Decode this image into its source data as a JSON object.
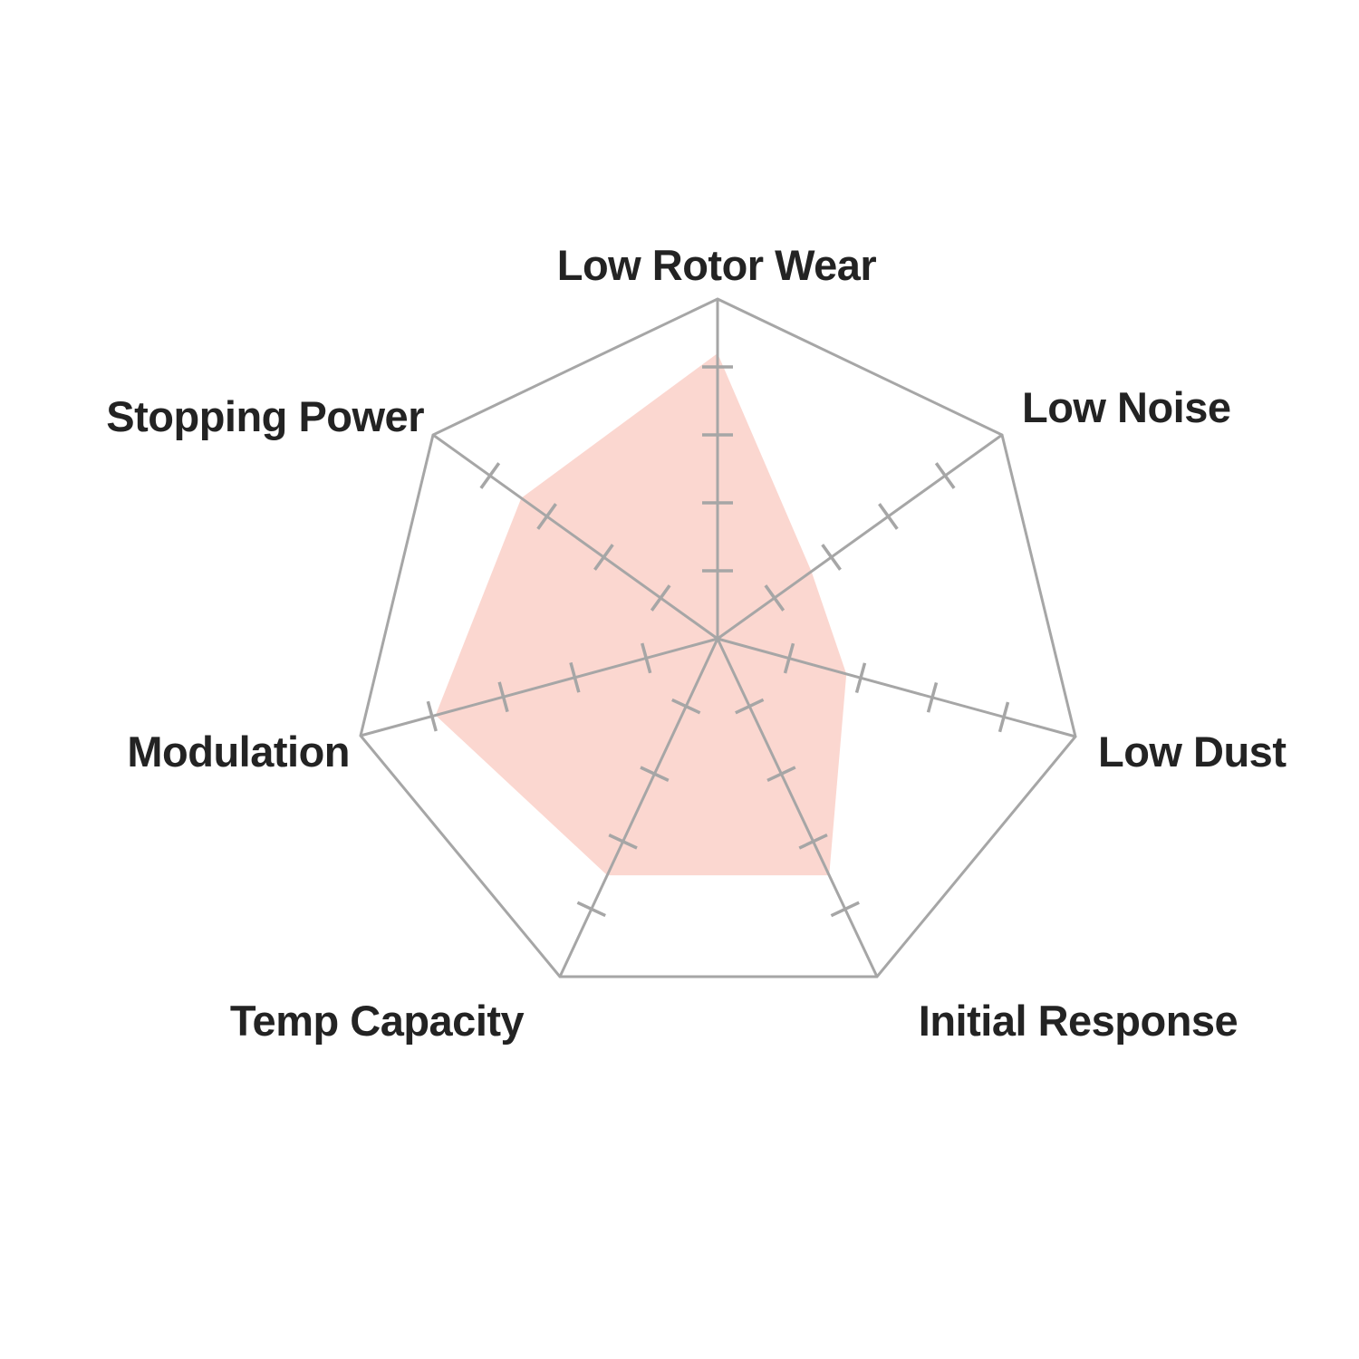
{
  "chart_data": {
    "type": "radar",
    "categories": [
      "Low Rotor Wear",
      "Low Noise",
      "Low Dust",
      "Initial Response",
      "Temp Capacity",
      "Modulation",
      "Stopping Power"
    ],
    "series": [
      {
        "values": [
          4.2,
          1.65,
          1.8,
          3.5,
          3.5,
          3.95,
          3.45
        ]
      }
    ],
    "scale_min": 0,
    "scale_max": 5,
    "ticks_per_axis": 4,
    "tick_step": 1,
    "grid": "single outer heptagon outline with radial spokes and perpendicular tick marks, no ring gridlines",
    "legend_position": "none",
    "colors": {
      "series_fill": "#FBD7D0",
      "grid_line": "#A6A6A6",
      "label_text": "#232323",
      "background": "#FFFFFF"
    }
  }
}
